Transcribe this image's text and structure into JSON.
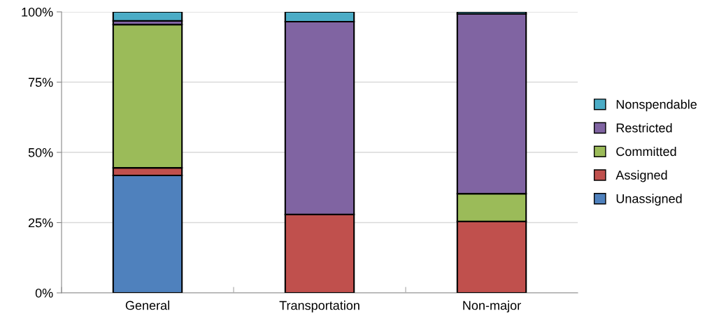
{
  "chart_data": {
    "type": "bar",
    "stacked": true,
    "categories": [
      "General",
      "Transportation",
      "Non-major"
    ],
    "series": [
      {
        "name": "Unassigned",
        "color": "#4f81bd",
        "values": [
          41.8,
          0,
          0
        ]
      },
      {
        "name": "Assigned",
        "color": "#c0504d",
        "values": [
          2.7,
          27.9,
          25.4
        ]
      },
      {
        "name": "Committed",
        "color": "#9bbb59",
        "values": [
          51.0,
          0,
          9.9
        ]
      },
      {
        "name": "Restricted",
        "color": "#8064a2",
        "values": [
          1.3,
          68.6,
          64.0
        ]
      },
      {
        "name": "Nonspendable",
        "color": "#4bacc6",
        "values": [
          3.2,
          3.5,
          0.7
        ]
      }
    ],
    "ylim": [
      0,
      100
    ],
    "yticks": [
      {
        "value": 0,
        "label": "0%"
      },
      {
        "value": 25,
        "label": "25%"
      },
      {
        "value": 50,
        "label": "50%"
      },
      {
        "value": 75,
        "label": "75%"
      },
      {
        "value": 100,
        "label": "100%"
      }
    ],
    "grid": "y",
    "legend": "right"
  }
}
